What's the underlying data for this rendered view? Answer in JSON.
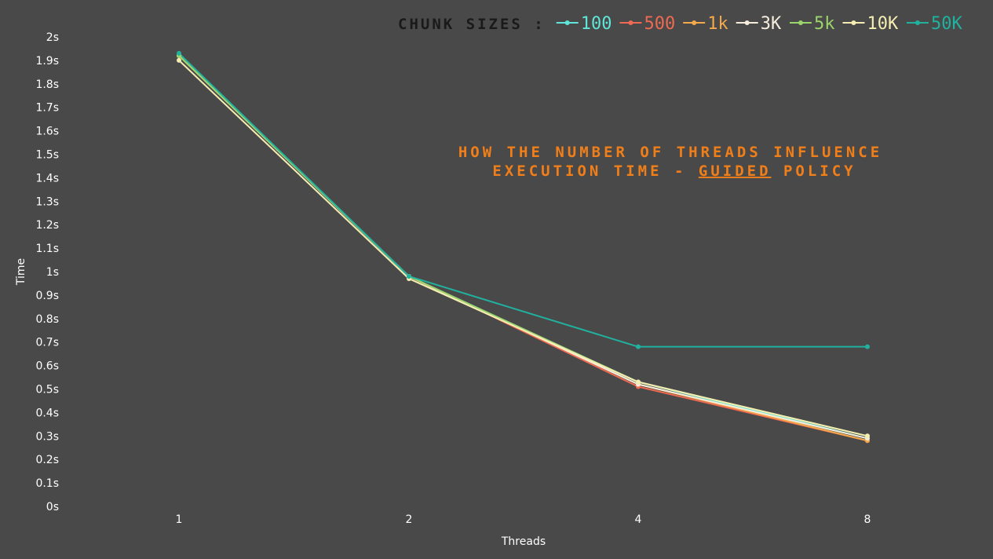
{
  "chart_data": {
    "type": "line",
    "title": {
      "line1": "HOW THE NUMBER OF THREADS INFLUENCE",
      "line2_before": "EXECUTION TIME - ",
      "line2_emph": "GUIDED",
      "line2_after": " POLICY"
    },
    "xlabel": "Threads",
    "ylabel": "Time",
    "x": [
      "1",
      "2",
      "4",
      "8"
    ],
    "ylim": [
      0,
      2
    ],
    "y_ticks": [
      {
        "value": 0,
        "label": "0s"
      },
      {
        "value": 0.1,
        "label": "0.1s"
      },
      {
        "value": 0.2,
        "label": "0.2s"
      },
      {
        "value": 0.3,
        "label": "0.3s"
      },
      {
        "value": 0.4,
        "label": "0.4s"
      },
      {
        "value": 0.5,
        "label": "0.5s"
      },
      {
        "value": 0.6,
        "label": "0.6s"
      },
      {
        "value": 0.7,
        "label": "0.7s"
      },
      {
        "value": 0.8,
        "label": "0.8s"
      },
      {
        "value": 0.9,
        "label": "0.9s"
      },
      {
        "value": 1.0,
        "label": "1s"
      },
      {
        "value": 1.1,
        "label": "1.1s"
      },
      {
        "value": 1.2,
        "label": "1.2s"
      },
      {
        "value": 1.3,
        "label": "1.3s"
      },
      {
        "value": 1.4,
        "label": "1.4s"
      },
      {
        "value": 1.5,
        "label": "1.5s"
      },
      {
        "value": 1.6,
        "label": "1.6s"
      },
      {
        "value": 1.7,
        "label": "1.7s"
      },
      {
        "value": 1.8,
        "label": "1.8s"
      },
      {
        "value": 1.9,
        "label": "1.9s"
      },
      {
        "value": 2.0,
        "label": "2s"
      }
    ],
    "legend_title": "CHUNK SIZES :",
    "legend_position": "top-right",
    "grid": false,
    "series": [
      {
        "name": "100",
        "color": "#5ee6d8",
        "values": [
          1.92,
          0.98,
          0.53,
          0.29
        ]
      },
      {
        "name": "500",
        "color": "#ee6a52",
        "values": [
          1.92,
          0.98,
          0.51,
          0.28
        ]
      },
      {
        "name": "1k",
        "color": "#f4a94a",
        "values": [
          1.92,
          0.98,
          0.52,
          0.28
        ]
      },
      {
        "name": "3K",
        "color": "#f6ecdc",
        "values": [
          1.92,
          0.98,
          0.52,
          0.29
        ]
      },
      {
        "name": "5k",
        "color": "#9bd46a",
        "values": [
          1.92,
          0.98,
          0.53,
          0.3
        ]
      },
      {
        "name": "10K",
        "color": "#f5edb2",
        "values": [
          1.9,
          0.97,
          0.53,
          0.3
        ]
      },
      {
        "name": "50K",
        "color": "#20b29f",
        "values": [
          1.93,
          0.98,
          0.68,
          0.68
        ]
      }
    ]
  }
}
